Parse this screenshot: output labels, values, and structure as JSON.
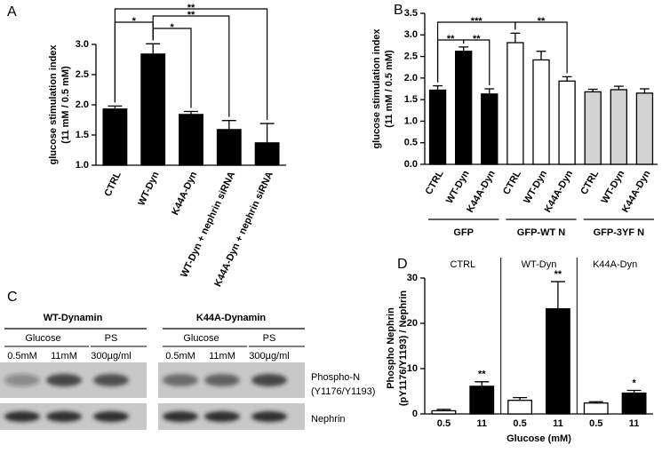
{
  "chart_data": [
    {
      "type": "bar",
      "panel_label": "A",
      "y_label": [
        "glucose stimulation index",
        "(11 mM / 0.5 mM)"
      ],
      "categories": [
        "CTRL",
        "WT-Dyn",
        "K44A-Dyn",
        "WT-Dyn + nephrin siRNA",
        "K44A-Dyn + nephrin siRNA"
      ],
      "values": [
        1.93,
        2.84,
        1.84,
        1.59,
        1.37
      ],
      "errors": [
        0.05,
        0.17,
        0.05,
        0.15,
        0.32
      ],
      "color": "#000000",
      "ylim": [
        1,
        3
      ],
      "yticks": [
        {
          "value": 1,
          "label": "1.0"
        },
        {
          "value": 1.5,
          "label": "1.5"
        },
        {
          "value": 2,
          "label": "2.0"
        },
        {
          "value": 2.5,
          "label": "2.5"
        },
        {
          "value": 3,
          "label": "3.0"
        }
      ],
      "annotations": [
        "*",
        "*",
        "**",
        "**"
      ]
    },
    {
      "type": "bar",
      "panel_label": "B",
      "y_label": [
        "glucose stimulation index",
        "(11 mM / 0.5 mM)"
      ],
      "categories": [
        "CTRL",
        "WT-Dyn",
        "K44A-Dyn",
        "CTRL",
        "WT-Dyn",
        "K44A-Dyn",
        "CTRL",
        "WT-Dyn",
        "K44A-Dyn"
      ],
      "values": [
        1.72,
        2.62,
        1.63,
        2.82,
        2.42,
        1.93,
        1.68,
        1.73,
        1.65
      ],
      "errors": [
        0.1,
        0.1,
        0.12,
        0.22,
        0.2,
        0.1,
        0.06,
        0.08,
        0.1
      ],
      "colors": [
        "#000000",
        "#000000",
        "#000000",
        "#ffffff",
        "#ffffff",
        "#ffffff",
        "#d3d3d3",
        "#d3d3d3",
        "#d3d3d3"
      ],
      "groups": [
        "GFP",
        "GFP-WT N",
        "GFP-3YF N"
      ],
      "ylim": [
        0,
        3.5
      ],
      "yticks": [
        {
          "value": 0,
          "label": "0.0"
        },
        {
          "value": 0.5,
          "label": "0.5"
        },
        {
          "value": 1,
          "label": "1.0"
        },
        {
          "value": 1.5,
          "label": "1.5"
        },
        {
          "value": 2,
          "label": "2.0"
        },
        {
          "value": 2.5,
          "label": "2.5"
        },
        {
          "value": 3,
          "label": "3.0"
        },
        {
          "value": 3.5,
          "label": "3.5"
        }
      ],
      "annotations": [
        "**",
        "**",
        "***",
        "**"
      ]
    },
    {
      "type": "bar",
      "panel_label": "D",
      "y_label": [
        "Phospho Nephrin",
        "(pY1176/Y1193) / Nephrin"
      ],
      "x_label": "Glucose (mM)",
      "categories": [
        "0.5",
        "11",
        "0.5",
        "11",
        "0.5",
        "11"
      ],
      "values": [
        0.7,
        6.1,
        3.0,
        23.2,
        2.4,
        4.6
      ],
      "errors": [
        0.3,
        1.0,
        0.6,
        6.0,
        0.3,
        0.6
      ],
      "colors": [
        "#ffffff",
        "#000000",
        "#ffffff",
        "#000000",
        "#ffffff",
        "#000000"
      ],
      "groups": [
        "CTRL",
        "WT-Dyn",
        "K44A-Dyn"
      ],
      "ylim": [
        0,
        30
      ],
      "yticks": [
        0,
        10,
        20,
        30
      ],
      "annotations": [
        "**",
        "**",
        "*"
      ]
    }
  ],
  "blot": {
    "panel_label": "C",
    "panels": [
      {
        "title": "WT-Dynamin",
        "glucose": "Glucose",
        "ps": "PS",
        "lanes": [
          "0.5mM",
          "11mM",
          "300µg/ml"
        ]
      },
      {
        "title": "K44A-Dynamin",
        "glucose": "Glucose",
        "ps": "PS",
        "lanes": [
          "0.5mM",
          "11mM",
          "300µg/ml"
        ]
      }
    ],
    "row_labels": [
      "Phospho-N",
      "(Y1176/Y1193)",
      "Nephrin"
    ]
  }
}
